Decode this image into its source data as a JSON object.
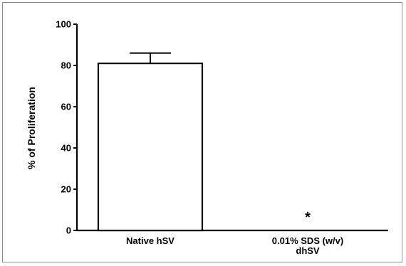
{
  "chart_data": {
    "type": "bar",
    "title": "",
    "ylabel": "% of Proliferation",
    "xlabel": "",
    "ylim": [
      0,
      100
    ],
    "yticks": [
      0,
      20,
      40,
      60,
      80,
      100
    ],
    "categories": [
      [
        "Native hSV"
      ],
      [
        "0.01% SDS (w/v)",
        "dhSV"
      ]
    ],
    "values": [
      81,
      0
    ],
    "error": [
      5,
      0
    ],
    "annotations": [
      {
        "category_index": 1,
        "text": "*"
      }
    ],
    "colors": {
      "bar_fill": "#ffffff",
      "bar_stroke": "#000000",
      "axis": "#000000"
    },
    "grid": false
  }
}
